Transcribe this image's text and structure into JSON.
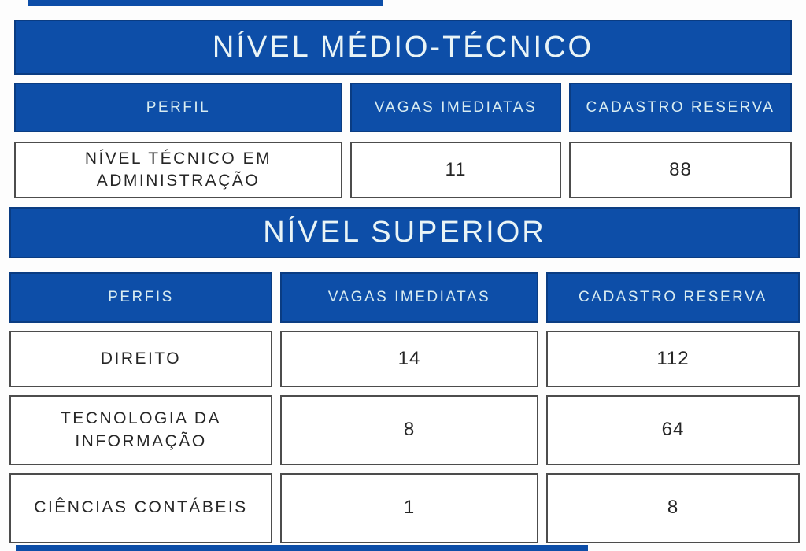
{
  "theme": {
    "blue": "#0d4ea8",
    "blue_border": "#0a3c82",
    "banner_text_color": "#e9f4f6",
    "header_text_color": "#d8ecf1",
    "cell_text_color": "#262626",
    "cell_border_color": "#4c4c4c",
    "background": "#fdfdfd"
  },
  "section_medio": {
    "title": "NÍVEL MÉDIO-TÉCNICO",
    "columns": [
      "PERFIL",
      "VAGAS IMEDIATAS",
      "CADASTRO RESERVA"
    ],
    "rows": [
      {
        "perfil": "NÍVEL TÉCNICO EM ADMINISTRAÇÃO",
        "vagas": "11",
        "reserva": "88"
      }
    ]
  },
  "section_superior": {
    "title": "NÍVEL SUPERIOR",
    "columns": [
      "PERFIS",
      "VAGAS IMEDIATAS",
      "CADASTRO RESERVA"
    ],
    "rows": [
      {
        "perfil": "DIREITO",
        "vagas": "14",
        "reserva": "112"
      },
      {
        "perfil": "TECNOLOGIA DA INFORMAÇÃO",
        "vagas": "8",
        "reserva": "64"
      },
      {
        "perfil": "CIÊNCIAS CONTÁBEIS",
        "vagas": "1",
        "reserva": "8"
      }
    ]
  }
}
